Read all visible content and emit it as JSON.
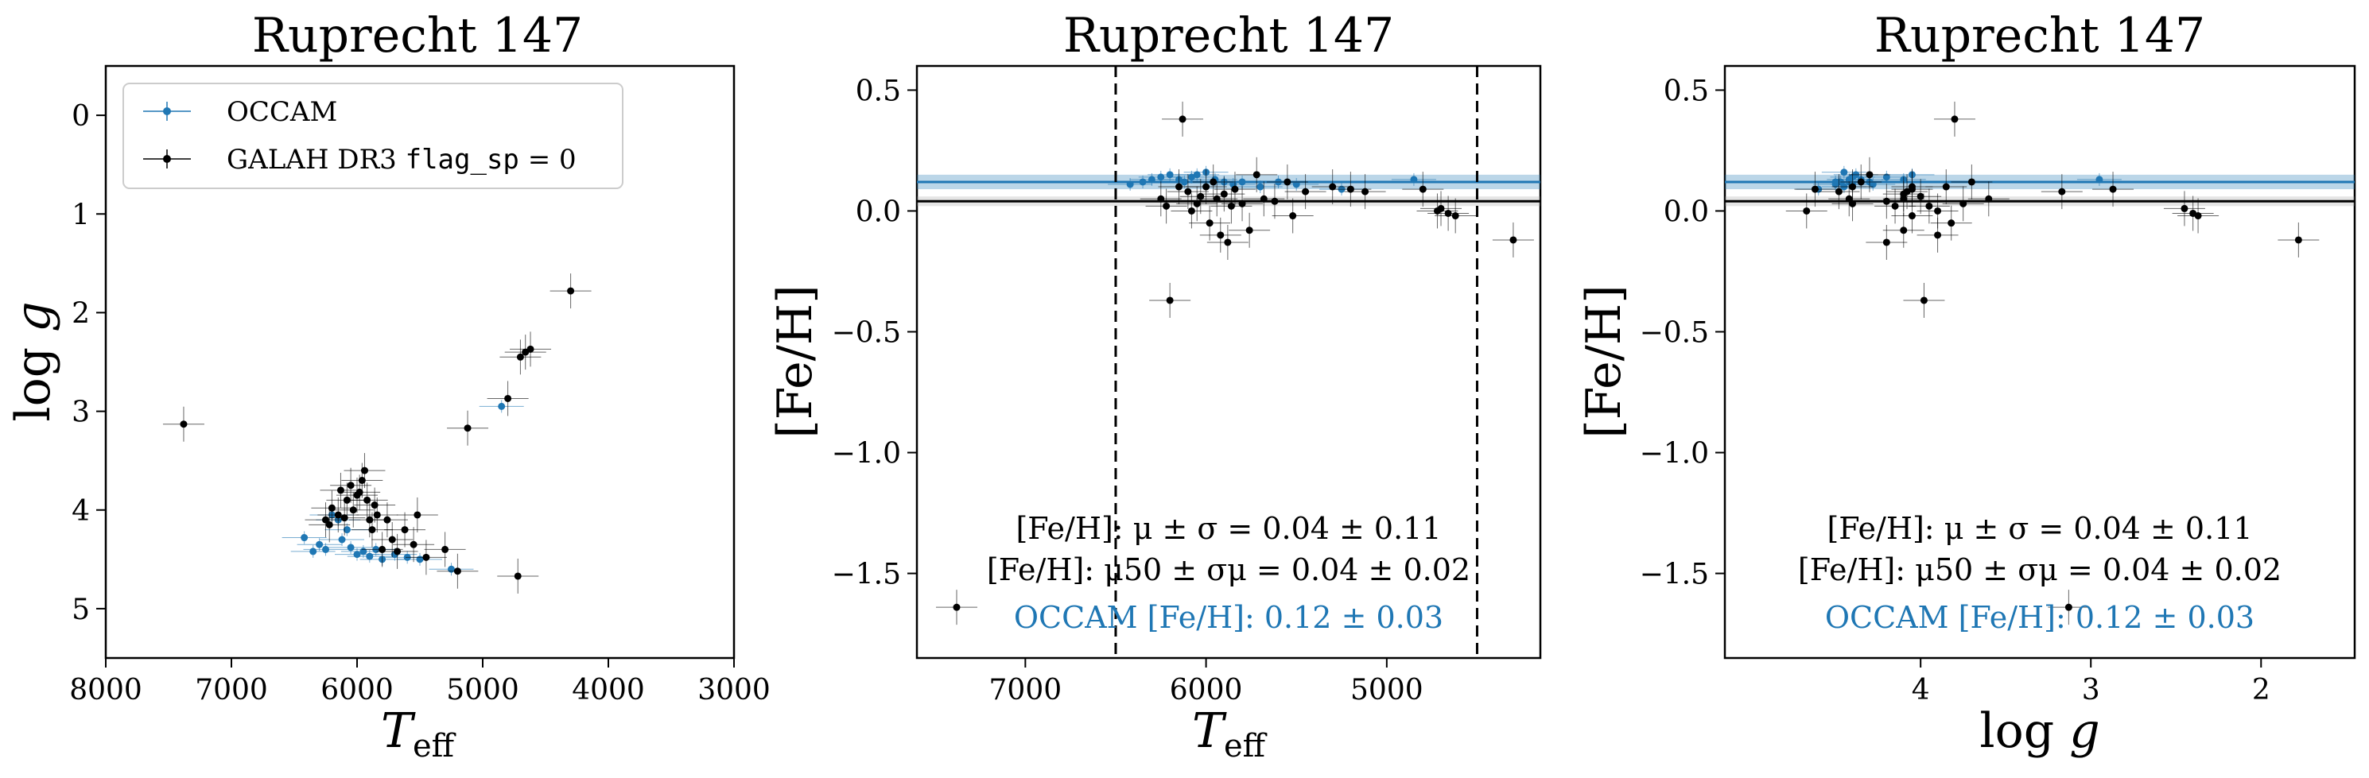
{
  "figure": {
    "panels": [
      {
        "id": "hr",
        "title": "Ruprecht 147",
        "xlabel": "T_eff",
        "ylabel": "log g",
        "xlim": [
          8000,
          3000
        ],
        "ylim": [
          5.5,
          -0.5
        ],
        "xticks": [
          8000,
          7000,
          6000,
          5000,
          4000,
          3000
        ],
        "xtick_labels": [
          "8000",
          "7000",
          "6000",
          "5000",
          "4000",
          "3000"
        ],
        "yticks": [
          0,
          1,
          2,
          3,
          4,
          5
        ],
        "ytick_labels": [
          "0",
          "1",
          "2",
          "3",
          "4",
          "5"
        ],
        "legend": {
          "location": "upper-left",
          "entries": [
            {
              "label": "OCCAM",
              "color": "#1f77b4"
            },
            {
              "label": "GALAH DR3 ",
              "code": "flag_sp",
              "suffix": " = 0",
              "color": "#000000"
            }
          ]
        }
      },
      {
        "id": "feh-teff",
        "title": "Ruprecht 147",
        "xlabel": "T_eff",
        "ylabel": "[Fe/H]",
        "xlim": [
          7600,
          4150
        ],
        "ylim": [
          -1.85,
          0.6
        ],
        "xticks": [
          7000,
          6000,
          5000
        ],
        "xtick_labels": [
          "7000",
          "6000",
          "5000"
        ],
        "yticks": [
          0.5,
          0.0,
          -0.5,
          -1.0,
          -1.5
        ],
        "ytick_labels": [
          "0.5",
          "0.0",
          "−0.5",
          "−1.0",
          "−1.5"
        ],
        "vlines": [
          6500,
          4500
        ],
        "annotations": [
          "[Fe/H]: μ ± σ = 0.04 ± 0.11",
          "[Fe/H]: μ50 ± σμ = 0.04 ± 0.02",
          "OCCAM [Fe/H]: 0.12 ± 0.03"
        ]
      },
      {
        "id": "feh-logg",
        "title": "Ruprecht 147",
        "xlabel": "log g",
        "ylabel": "[Fe/H]",
        "xlim": [
          5.15,
          1.45
        ],
        "ylim": [
          -1.85,
          0.6
        ],
        "xticks": [
          4,
          3,
          2
        ],
        "xtick_labels": [
          "4",
          "3",
          "2"
        ],
        "yticks": [
          0.5,
          0.0,
          -0.5,
          -1.0,
          -1.5
        ],
        "ytick_labels": [
          "0.5",
          "0.0",
          "−0.5",
          "−1.0",
          "−1.5"
        ],
        "annotations": [
          "[Fe/H]: μ ± σ = 0.04 ± 0.11",
          "[Fe/H]: μ50 ± σμ = 0.04 ± 0.02",
          "OCCAM [Fe/H]: 0.12 ± 0.03"
        ]
      }
    ]
  },
  "chart_data": {
    "type": "scatter",
    "colors": {
      "occam": "#1f77b4",
      "galah": "#000000"
    },
    "summary": {
      "galah_mean_feh": 0.04,
      "galah_sigma_feh": 0.11,
      "galah_median_feh": 0.04,
      "galah_sigma_mu": 0.02,
      "occam_feh": 0.12,
      "occam_feh_err": 0.03
    },
    "occam": [
      {
        "teff": 6420,
        "logg": 4.28,
        "feh": 0.11
      },
      {
        "teff": 6350,
        "logg": 4.42,
        "feh": 0.12
      },
      {
        "teff": 6300,
        "logg": 4.35,
        "feh": 0.13
      },
      {
        "teff": 6250,
        "logg": 4.4,
        "feh": 0.14
      },
      {
        "teff": 6200,
        "logg": 4.05,
        "feh": 0.15
      },
      {
        "teff": 6150,
        "logg": 4.1,
        "feh": 0.13
      },
      {
        "teff": 6120,
        "logg": 4.3,
        "feh": 0.12
      },
      {
        "teff": 6080,
        "logg": 4.2,
        "feh": 0.14
      },
      {
        "teff": 6050,
        "logg": 4.38,
        "feh": 0.15
      },
      {
        "teff": 6000,
        "logg": 4.45,
        "feh": 0.16
      },
      {
        "teff": 5950,
        "logg": 4.42,
        "feh": 0.13
      },
      {
        "teff": 5900,
        "logg": 4.47,
        "feh": 0.12
      },
      {
        "teff": 5850,
        "logg": 4.4,
        "feh": 0.11
      },
      {
        "teff": 5800,
        "logg": 4.5,
        "feh": 0.12
      },
      {
        "teff": 5700,
        "logg": 4.45,
        "feh": 0.1
      },
      {
        "teff": 5600,
        "logg": 4.48,
        "feh": 0.12
      },
      {
        "teff": 5500,
        "logg": 4.5,
        "feh": 0.11
      },
      {
        "teff": 5250,
        "logg": 4.6,
        "feh": 0.09
      },
      {
        "teff": 4850,
        "logg": 2.95,
        "feh": 0.13
      }
    ],
    "galah": [
      {
        "teff": 7380,
        "logg": 3.13,
        "feh": -1.64
      },
      {
        "teff": 6250,
        "logg": 4.1,
        "feh": 0.05
      },
      {
        "teff": 6220,
        "logg": 4.15,
        "feh": 0.02
      },
      {
        "teff": 6200,
        "logg": 3.98,
        "feh": -0.37
      },
      {
        "teff": 6150,
        "logg": 4.05,
        "feh": 0.1
      },
      {
        "teff": 6130,
        "logg": 3.8,
        "feh": 0.38
      },
      {
        "teff": 6100,
        "logg": 4.08,
        "feh": 0.08
      },
      {
        "teff": 6080,
        "logg": 3.9,
        "feh": 0.0
      },
      {
        "teff": 6050,
        "logg": 3.75,
        "feh": 0.03
      },
      {
        "teff": 6030,
        "logg": 4.0,
        "feh": 0.06
      },
      {
        "teff": 6000,
        "logg": 3.85,
        "feh": 0.1
      },
      {
        "teff": 5980,
        "logg": 3.82,
        "feh": -0.05
      },
      {
        "teff": 5960,
        "logg": 3.7,
        "feh": 0.12
      },
      {
        "teff": 5940,
        "logg": 3.6,
        "feh": 0.05
      },
      {
        "teff": 5920,
        "logg": 3.9,
        "feh": -0.1
      },
      {
        "teff": 5900,
        "logg": 4.1,
        "feh": 0.07
      },
      {
        "teff": 5880,
        "logg": 4.2,
        "feh": -0.13
      },
      {
        "teff": 5860,
        "logg": 3.95,
        "feh": 0.02
      },
      {
        "teff": 5840,
        "logg": 4.05,
        "feh": 0.09
      },
      {
        "teff": 5800,
        "logg": 4.4,
        "feh": 0.03
      },
      {
        "teff": 5760,
        "logg": 4.1,
        "feh": -0.08
      },
      {
        "teff": 5720,
        "logg": 4.3,
        "feh": 0.15
      },
      {
        "teff": 5680,
        "logg": 4.42,
        "feh": 0.05
      },
      {
        "teff": 5620,
        "logg": 4.2,
        "feh": 0.04
      },
      {
        "teff": 5550,
        "logg": 4.35,
        "feh": 0.12
      },
      {
        "teff": 5520,
        "logg": 4.05,
        "feh": -0.02
      },
      {
        "teff": 5450,
        "logg": 4.48,
        "feh": 0.08
      },
      {
        "teff": 5300,
        "logg": 4.4,
        "feh": 0.1
      },
      {
        "teff": 5200,
        "logg": 4.62,
        "feh": 0.09
      },
      {
        "teff": 5120,
        "logg": 3.17,
        "feh": 0.08
      },
      {
        "teff": 4800,
        "logg": 2.87,
        "feh": 0.09
      },
      {
        "teff": 4720,
        "logg": 4.67,
        "feh": 0.0
      },
      {
        "teff": 4700,
        "logg": 2.45,
        "feh": 0.01
      },
      {
        "teff": 4660,
        "logg": 2.4,
        "feh": -0.01
      },
      {
        "teff": 4620,
        "logg": 2.37,
        "feh": -0.02
      },
      {
        "teff": 4300,
        "logg": 1.78,
        "feh": -0.12
      }
    ]
  }
}
